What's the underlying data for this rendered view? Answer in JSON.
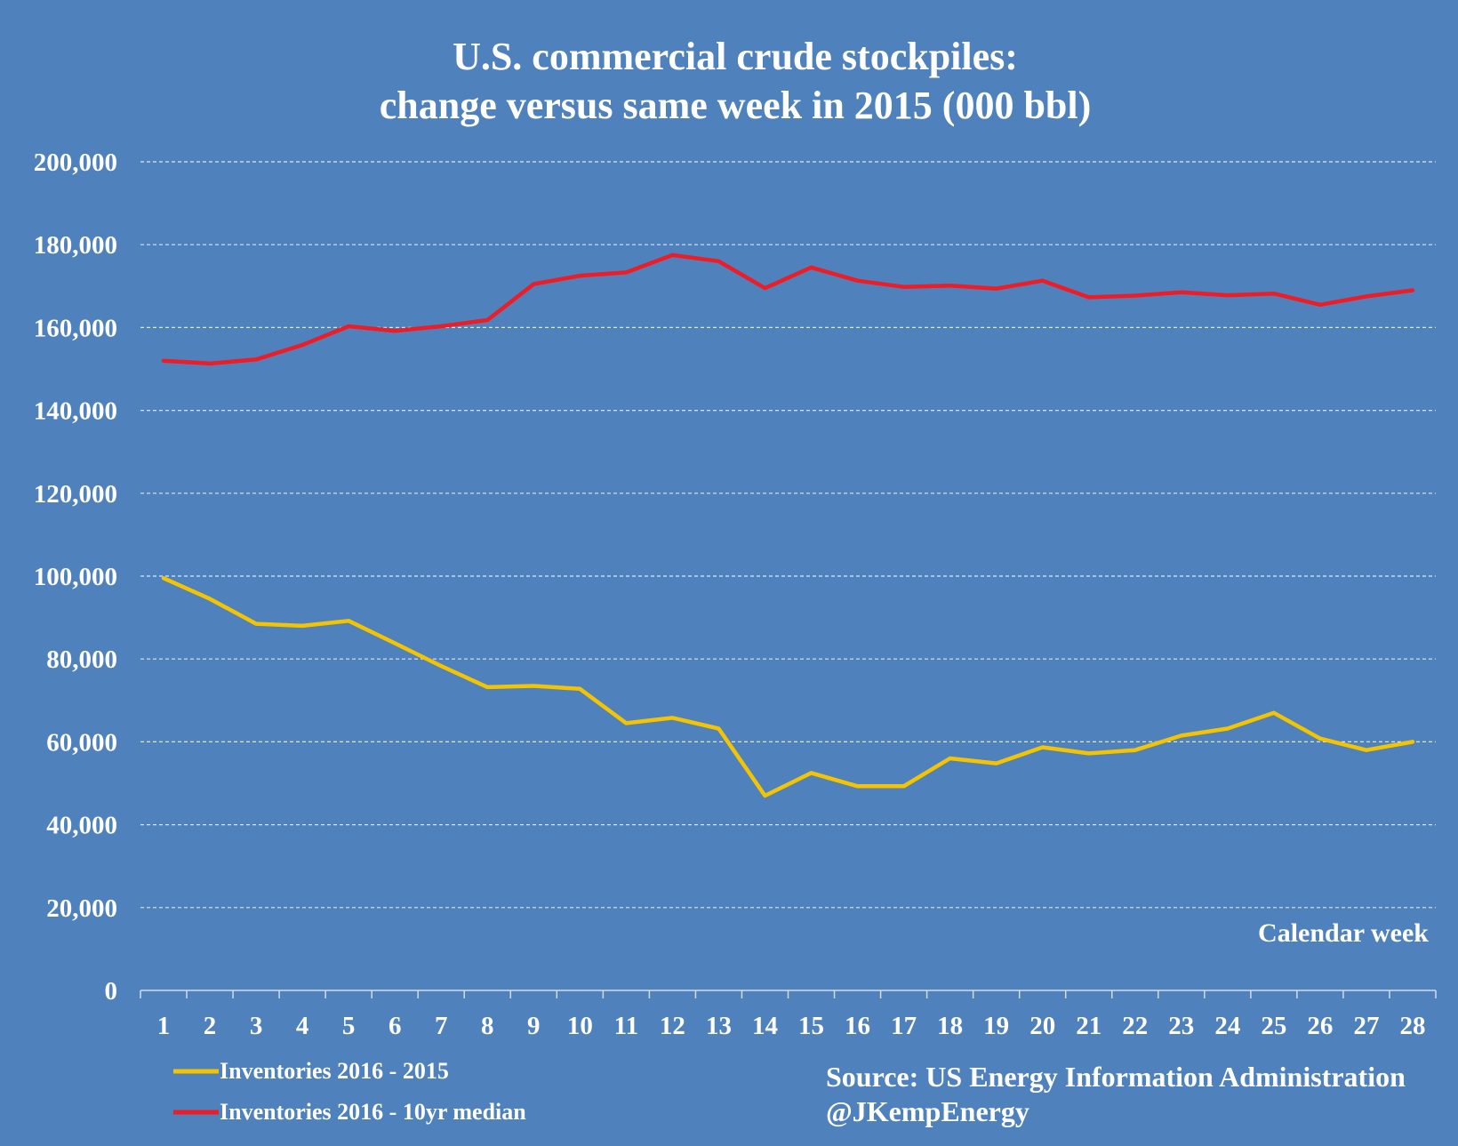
{
  "chart_data": {
    "type": "line",
    "title_lines": [
      "U.S. commercial crude stockpiles:",
      "change versus same week in 2015 (000 bbl)"
    ],
    "xlabel": "Calendar week",
    "ylabel": "",
    "ylim": [
      0,
      200000
    ],
    "yticks": [
      0,
      20000,
      40000,
      60000,
      80000,
      100000,
      120000,
      140000,
      160000,
      180000,
      200000
    ],
    "ytick_labels": [
      "0",
      "20,000",
      "40,000",
      "60,000",
      "80,000",
      "100,000",
      "120,000",
      "140,000",
      "160,000",
      "180,000",
      "200,000"
    ],
    "grid": true,
    "legend_position": "bottom-left",
    "categories": [
      "1",
      "2",
      "3",
      "4",
      "5",
      "6",
      "7",
      "8",
      "9",
      "10",
      "11",
      "12",
      "13",
      "14",
      "15",
      "16",
      "17",
      "18",
      "19",
      "20",
      "21",
      "22",
      "23",
      "24",
      "25",
      "26",
      "27",
      "28"
    ],
    "series": [
      {
        "name": "Inventories 2016 - 2015",
        "color": "#f5c400",
        "values": [
          99500,
          94500,
          88500,
          88000,
          89200,
          83800,
          78300,
          73200,
          73500,
          72800,
          64500,
          65800,
          63200,
          47000,
          52500,
          49300,
          49300,
          56000,
          54800,
          58700,
          57200,
          58000,
          61500,
          63200,
          67000,
          60800,
          58000,
          60000
        ]
      },
      {
        "name": "Inventories 2016 - 10yr median",
        "color": "#ee1c25",
        "values": [
          152000,
          151300,
          152300,
          155800,
          160300,
          159200,
          160300,
          161800,
          170500,
          172500,
          173300,
          177500,
          176000,
          169500,
          174500,
          171300,
          169800,
          170100,
          169400,
          171300,
          167300,
          167700,
          168500,
          167800,
          168200,
          165500,
          167500,
          169000
        ]
      }
    ],
    "source_lines": [
      "Source: US Energy Information Administration",
      "@JKempEnergy"
    ]
  },
  "colors": {
    "background": "#4f81bd",
    "text": "#ffffff",
    "grid": "#dbe5f1"
  }
}
